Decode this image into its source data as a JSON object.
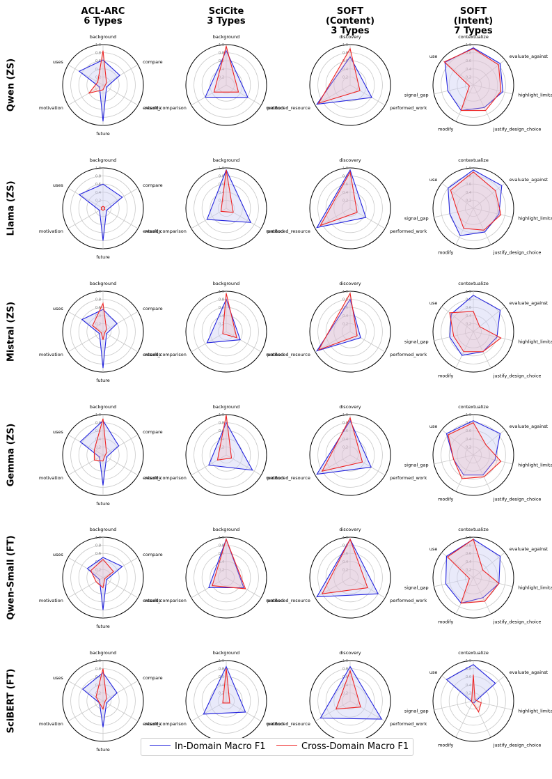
{
  "column_titles": [
    [
      "ACL-ARC",
      "6 Types"
    ],
    [
      "SciCite",
      "3 Types"
    ],
    [
      "SOFT",
      "(Content)",
      "3 Types"
    ],
    [
      "SOFT",
      "(Intent)",
      "7 Types"
    ]
  ],
  "row_titles": [
    "Qwen (ZS)",
    "Llama (ZS)",
    "Mistral (ZS)",
    "Gemma (ZS)",
    "Qwen-Small (FT)",
    "SciBERT (FT)"
  ],
  "legend": {
    "in_domain": "In-Domain Macro F1",
    "cross_domain": "Cross-Domain Macro F1"
  },
  "colors": {
    "in_domain": "#2222dd",
    "cross_domain": "#ee2222",
    "fill": "#cfd0f5"
  },
  "chart_data": {
    "type": "radar",
    "radial_range": [
      0,
      1.0
    ],
    "radial_ticks": [
      "0.2",
      "0.4",
      "0.6",
      "0.8",
      "1.0"
    ],
    "datasets": [
      {
        "name": "ACL-ARC",
        "categories": [
          "background",
          "compare",
          "extends",
          "future",
          "motivation",
          "uses"
        ]
      },
      {
        "name": "SciCite",
        "categories": [
          "background",
          "method",
          "result_comparison"
        ]
      },
      {
        "name": "SOFT (Content)",
        "categories": [
          "discovery",
          "performed_work",
          "produced_resource"
        ]
      },
      {
        "name": "SOFT (Intent)",
        "categories": [
          "contextualize",
          "evaluate_against",
          "highlight_limitation",
          "justify_design_choice",
          "modify",
          "signal_gap",
          "use"
        ]
      }
    ],
    "rows": [
      {
        "model": "Qwen (ZS)",
        "series": [
          {
            "in_domain": [
              0.62,
              0.48,
              0.1,
              0.9,
              0.1,
              0.68
            ],
            "cross_domain": [
              0.85,
              0.1,
              0.05,
              0.12,
              0.4,
              0.15
            ]
          },
          {
            "in_domain": [
              0.85,
              0.62,
              0.6
            ],
            "cross_domain": [
              0.96,
              0.35,
              0.35
            ]
          },
          {
            "in_domain": [
              0.7,
              0.62,
              0.95
            ],
            "cross_domain": [
              0.9,
              0.28,
              0.9
            ]
          },
          {
            "in_domain": [
              0.92,
              0.85,
              0.75,
              0.62,
              0.7,
              0.65,
              0.9
            ],
            "cross_domain": [
              0.9,
              0.8,
              0.7,
              0.7,
              0.7,
              0.1,
              0.92
            ]
          }
        ]
      },
      {
        "model": "Llama (ZS)",
        "series": [
          {
            "in_domain": [
              0.6,
              0.55,
              0.1,
              0.8,
              0.1,
              0.68
            ],
            "cross_domain": [
              0.05,
              0.05,
              0.05,
              0.05,
              0.05,
              0.05
            ]
          },
          {
            "in_domain": [
              0.95,
              0.7,
              0.55
            ],
            "cross_domain": [
              0.95,
              0.2,
              0.15
            ]
          },
          {
            "in_domain": [
              0.95,
              0.45,
              0.95
            ],
            "cross_domain": [
              0.9,
              0.2,
              0.85
            ]
          },
          {
            "in_domain": [
              0.95,
              0.9,
              0.65,
              0.65,
              0.75,
              0.6,
              0.8
            ],
            "cross_domain": [
              0.9,
              0.7,
              0.7,
              0.6,
              0.55,
              0.4,
              0.72
            ]
          }
        ]
      },
      {
        "model": "Mistral (ZS)",
        "series": [
          {
            "in_domain": [
              0.55,
              0.4,
              0.1,
              0.9,
              0.1,
              0.6
            ],
            "cross_domain": [
              0.7,
              0.1,
              0.05,
              0.2,
              0.05,
              0.3
            ]
          },
          {
            "in_domain": [
              0.8,
              0.4,
              0.55
            ],
            "cross_domain": [
              0.95,
              0.3,
              0.1
            ]
          },
          {
            "in_domain": [
              0.8,
              0.3,
              0.95
            ],
            "cross_domain": [
              0.95,
              0.2,
              0.9
            ]
          },
          {
            "in_domain": [
              0.9,
              0.85,
              0.6,
              0.55,
              0.65,
              0.6,
              0.7
            ],
            "cross_domain": [
              0.5,
              0.2,
              0.7,
              0.55,
              0.55,
              0.5,
              0.75
            ]
          }
        ]
      },
      {
        "model": "Gemma (ZS)",
        "series": [
          {
            "in_domain": [
              0.85,
              0.45,
              0.1,
              0.75,
              0.1,
              0.65
            ],
            "cross_domain": [
              0.9,
              0.1,
              0.05,
              0.15,
              0.25,
              0.25
            ]
          },
          {
            "in_domain": [
              0.8,
              0.75,
              0.5
            ],
            "cross_domain": [
              0.99,
              0.15,
              0.25
            ]
          },
          {
            "in_domain": [
              0.85,
              0.6,
              0.95
            ],
            "cross_domain": [
              0.92,
              0.35,
              0.8
            ]
          },
          {
            "in_domain": [
              0.85,
              0.85,
              0.55,
              0.55,
              0.55,
              0.5,
              0.85
            ],
            "cross_domain": [
              0.8,
              0.4,
              0.7,
              0.6,
              0.65,
              0.5,
              0.8
            ]
          }
        ]
      },
      {
        "model": "Qwen-Small (FT)",
        "series": [
          {
            "in_domain": [
              0.5,
              0.55,
              0.1,
              0.8,
              0.1,
              0.45
            ],
            "cross_domain": [
              0.45,
              0.3,
              0.05,
              0.25,
              0.2,
              0.35
            ]
          },
          {
            "in_domain": [
              0.95,
              0.5,
              0.5
            ],
            "cross_domain": [
              0.95,
              0.55,
              0.4
            ]
          },
          {
            "in_domain": [
              0.95,
              0.8,
              0.95
            ],
            "cross_domain": [
              0.95,
              0.5,
              0.8
            ]
          },
          {
            "in_domain": [
              0.95,
              0.85,
              0.65,
              0.55,
              0.7,
              0.7,
              0.85
            ],
            "cross_domain": [
              0.95,
              0.3,
              0.65,
              0.65,
              0.7,
              0.1,
              0.82
            ]
          }
        ]
      },
      {
        "model": "SciBERT (FT)",
        "series": [
          {
            "in_domain": [
              0.7,
              0.4,
              0.1,
              0.65,
              0.1,
              0.58
            ],
            "cross_domain": [
              0.8,
              0.1,
              0.05,
              0.2,
              0.1,
              0.2
            ]
          },
          {
            "in_domain": [
              0.85,
              0.55,
              0.65
            ],
            "cross_domain": [
              0.8,
              0.1,
              0.1
            ]
          },
          {
            "in_domain": [
              0.85,
              0.9,
              0.85
            ],
            "cross_domain": [
              0.75,
              0.3,
              0.4
            ]
          },
          {
            "in_domain": [
              0.9,
              0.7,
              0.05,
              0.05,
              0.05,
              0.05,
              0.85
            ],
            "cross_domain": [
              0.65,
              0.05,
              0.2,
              0.3,
              0.05,
              0.05,
              0.05
            ]
          }
        ]
      }
    ]
  }
}
